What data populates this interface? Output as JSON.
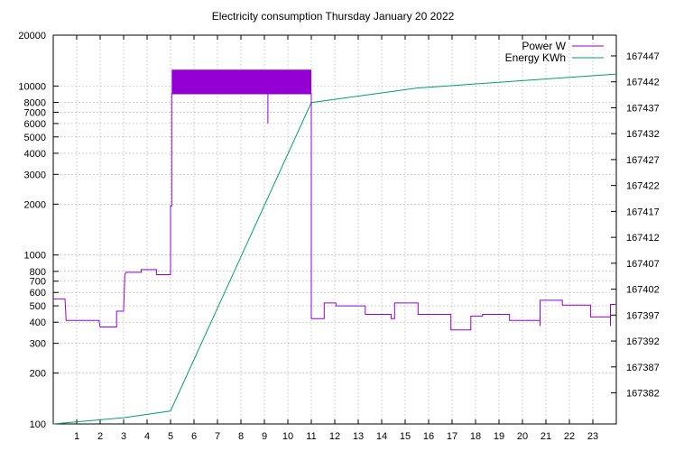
{
  "chart_data": {
    "type": "line",
    "title": "Electricity consumption Thursday January 20 2022",
    "xlabel": "",
    "ylabel": "",
    "y2label": "",
    "x_range": [
      0,
      24
    ],
    "x_ticks": [
      1,
      2,
      3,
      4,
      5,
      6,
      7,
      8,
      9,
      10,
      11,
      12,
      13,
      14,
      15,
      16,
      17,
      18,
      19,
      20,
      21,
      22,
      23
    ],
    "y_scale": "log",
    "y_range": [
      100,
      20000
    ],
    "y_ticks": [
      100,
      200,
      300,
      400,
      500,
      600,
      700,
      800,
      1000,
      2000,
      3000,
      4000,
      5000,
      6000,
      7000,
      8000,
      10000,
      20000
    ],
    "y2_range": [
      167376,
      167451
    ],
    "y2_ticks": [
      167382,
      167387,
      167392,
      167397,
      167402,
      167407,
      167412,
      167417,
      167422,
      167427,
      167432,
      167437,
      167442,
      167447
    ],
    "grid": true,
    "legend_position": "top-right",
    "colors": {
      "power": "#9400d3",
      "energy": "#009e73"
    },
    "series": [
      {
        "name": "Power W",
        "axis": "y",
        "step": true,
        "points": [
          [
            0.0,
            550
          ],
          [
            0.5,
            550
          ],
          [
            0.52,
            490
          ],
          [
            0.55,
            410
          ],
          [
            1.0,
            410
          ],
          [
            1.95,
            410
          ],
          [
            2.0,
            375
          ],
          [
            2.7,
            375
          ],
          [
            2.7,
            465
          ],
          [
            3.0,
            465
          ],
          [
            3.05,
            760
          ],
          [
            3.1,
            790
          ],
          [
            3.75,
            790
          ],
          [
            3.75,
            820
          ],
          [
            4.4,
            820
          ],
          [
            4.4,
            765
          ],
          [
            5.0,
            765
          ],
          [
            5.0,
            1950
          ],
          [
            5.05,
            1950
          ],
          [
            5.05,
            9000
          ],
          [
            11.0,
            9000
          ],
          [
            11.0,
            420
          ],
          [
            11.55,
            420
          ],
          [
            11.55,
            520
          ],
          [
            12.05,
            520
          ],
          [
            12.05,
            500
          ],
          [
            13.3,
            500
          ],
          [
            13.3,
            445
          ],
          [
            14.4,
            445
          ],
          [
            14.4,
            420
          ],
          [
            14.55,
            420
          ],
          [
            14.55,
            520
          ],
          [
            15.55,
            520
          ],
          [
            15.55,
            445
          ],
          [
            16.95,
            445
          ],
          [
            16.95,
            360
          ],
          [
            17.8,
            360
          ],
          [
            17.8,
            435
          ],
          [
            18.3,
            435
          ],
          [
            18.3,
            445
          ],
          [
            19.45,
            445
          ],
          [
            19.45,
            410
          ],
          [
            20.75,
            410
          ],
          [
            20.75,
            540
          ],
          [
            21.7,
            540
          ],
          [
            21.7,
            505
          ],
          [
            22.9,
            505
          ],
          [
            22.9,
            430
          ],
          [
            23.75,
            430
          ],
          [
            23.75,
            510
          ],
          [
            24.0,
            510
          ]
        ],
        "band": {
          "x_start": 5.05,
          "x_end": 11.0,
          "low": 9000,
          "high": 12500
        },
        "spikes": [
          {
            "x": 9.15,
            "low": 6000,
            "high": 9000
          },
          {
            "x": 20.75,
            "low": 380,
            "high": 540
          },
          {
            "x": 23.75,
            "low": 380,
            "high": 510
          }
        ]
      },
      {
        "name": "Energy KWh",
        "axis": "y2",
        "points": [
          [
            0.0,
            167376.0
          ],
          [
            3.0,
            167377.2
          ],
          [
            5.0,
            167378.5
          ],
          [
            11.0,
            167438.0
          ],
          [
            15.5,
            167440.8
          ],
          [
            24.0,
            167443.5
          ]
        ]
      }
    ]
  }
}
